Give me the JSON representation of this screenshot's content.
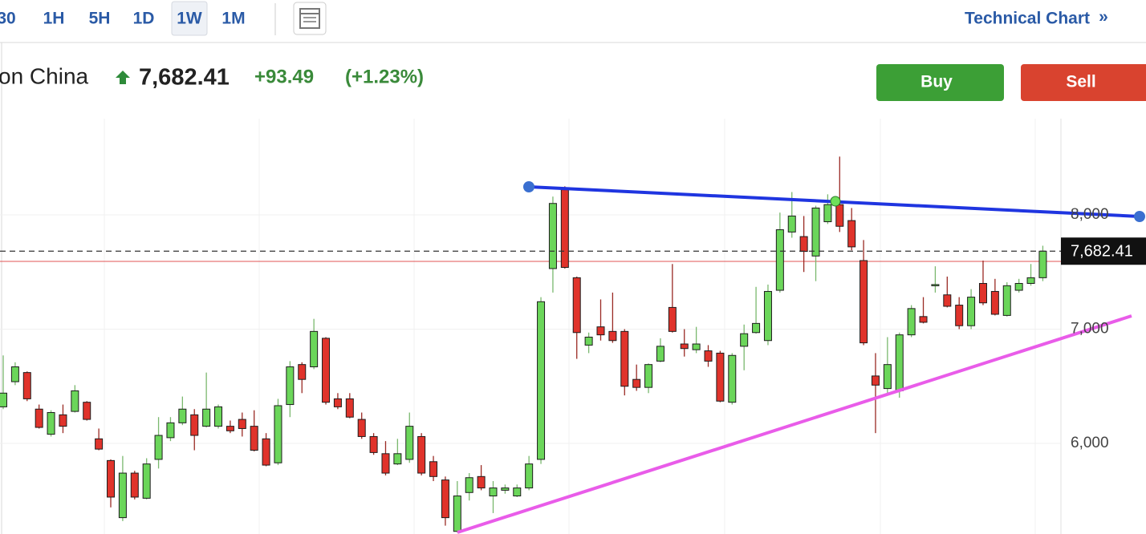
{
  "toolbar": {
    "timeframes": [
      "30",
      "1H",
      "5H",
      "1D",
      "1W",
      "1M"
    ],
    "active": 4,
    "link": "Technical Chart",
    "link_arrow": "»"
  },
  "header": {
    "name": "on China",
    "price": "7,682.41",
    "change": "+93.49",
    "change_pct": "(+1.23%)"
  },
  "buttons": {
    "buy": "Buy",
    "sell": "Sell"
  },
  "chart_data": {
    "type": "candlestick",
    "categories": [
      null,
      null,
      null,
      null,
      null,
      null,
      null,
      null,
      null,
      null,
      null,
      null,
      null,
      null,
      null,
      null,
      null,
      null,
      null,
      null,
      null,
      null,
      null,
      null,
      null,
      null,
      null,
      null,
      null,
      null,
      null,
      null,
      null,
      null,
      null,
      null,
      null,
      null,
      null,
      null,
      null,
      null,
      null,
      null,
      null,
      null,
      null,
      null,
      null,
      null,
      null,
      null,
      null,
      null,
      null,
      null,
      null,
      null,
      null,
      null,
      null,
      null,
      null,
      null,
      null,
      null,
      null,
      null,
      null,
      null,
      null,
      null,
      null,
      null,
      null,
      null,
      null,
      null,
      null,
      null,
      null,
      null,
      null,
      null,
      null,
      null,
      null,
      null
    ],
    "open": [
      6320,
      6540,
      6620,
      6300,
      6080,
      6250,
      6280,
      6360,
      6040,
      5850,
      5350,
      5740,
      5520,
      5860,
      6050,
      6180,
      6250,
      6150,
      6150,
      6150,
      6210,
      6150,
      6040,
      5830,
      6340,
      6690,
      6670,
      6920,
      6390,
      6390,
      6210,
      6060,
      5910,
      5820,
      5860,
      6060,
      5840,
      5680,
      5230,
      5570,
      5710,
      5540,
      5590,
      5540,
      5610,
      5860,
      7530,
      8220,
      7450,
      6860,
      7020,
      6980,
      6980,
      6560,
      6490,
      6720,
      7190,
      6870,
      6820,
      6810,
      6790,
      6360,
      6850,
      6970,
      6900,
      7340,
      7850,
      7810,
      7640,
      7940,
      8090,
      7950,
      7600,
      6590,
      6480,
      6460,
      6950,
      7110,
      7380,
      7300,
      7210,
      7030,
      7400,
      7330,
      7120,
      7340,
      7400,
      7450
    ],
    "high": [
      6770,
      6710,
      6630,
      6340,
      6290,
      6340,
      6510,
      6370,
      6130,
      5860,
      5890,
      5760,
      5870,
      6230,
      6230,
      6410,
      6300,
      6620,
      6340,
      6200,
      6270,
      6290,
      6090,
      6390,
      6720,
      6710,
      7090,
      6930,
      6440,
      6440,
      6270,
      6090,
      6020,
      6040,
      6270,
      6090,
      5890,
      5710,
      5670,
      5740,
      5810,
      5670,
      5640,
      5640,
      5890,
      7280,
      8160,
      8250,
      7460,
      6970,
      7260,
      7320,
      7000,
      6690,
      6700,
      6920,
      7570,
      7000,
      7020,
      6860,
      6810,
      6790,
      7040,
      7370,
      7390,
      8020,
      8200,
      7990,
      8080,
      8180,
      8510,
      8060,
      7780,
      6790,
      6930,
      6970,
      7210,
      7280,
      7550,
      7460,
      7280,
      7350,
      7600,
      7440,
      7410,
      7440,
      7570,
      7730
    ],
    "low": [
      6300,
      6510,
      6370,
      6130,
      6060,
      6090,
      6270,
      6200,
      5940,
      5440,
      5320,
      5510,
      5510,
      5780,
      6020,
      6160,
      5940,
      6140,
      6130,
      6090,
      6060,
      5930,
      5800,
      5810,
      6230,
      6440,
      6650,
      6340,
      6300,
      6220,
      6040,
      5900,
      5720,
      5810,
      5830,
      5720,
      5670,
      5280,
      5220,
      5500,
      5590,
      5390,
      5560,
      5530,
      5590,
      5820,
      7320,
      7530,
      6740,
      6790,
      6900,
      6880,
      6420,
      6460,
      6440,
      6710,
      6970,
      6760,
      6790,
      6670,
      6360,
      6340,
      6640,
      6960,
      6860,
      7320,
      7800,
      7500,
      7420,
      7920,
      7850,
      7690,
      6860,
      6090,
      6440,
      6400,
      6930,
      7050,
      7320,
      7190,
      7000,
      7000,
      7210,
      7120,
      7110,
      7320,
      7380,
      7420
    ],
    "close": [
      6440,
      6670,
      6390,
      6140,
      6270,
      6150,
      6460,
      6210,
      5950,
      5530,
      5740,
      5530,
      5820,
      6070,
      6180,
      6300,
      6070,
      6300,
      6320,
      6110,
      6130,
      5940,
      5810,
      6330,
      6670,
      6560,
      6980,
      6360,
      6320,
      6230,
      6060,
      5920,
      5740,
      5910,
      6150,
      5740,
      5710,
      5350,
      5540,
      5700,
      5610,
      5610,
      5610,
      5610,
      5820,
      7240,
      8100,
      7540,
      6970,
      6930,
      6950,
      6900,
      6500,
      6490,
      6690,
      6850,
      6980,
      6830,
      6870,
      6720,
      6370,
      6770,
      6960,
      7050,
      7330,
      7870,
      7990,
      7680,
      8060,
      8090,
      7900,
      7720,
      6880,
      6510,
      6690,
      6950,
      7180,
      7060,
      7390,
      7200,
      7030,
      7280,
      7230,
      7130,
      7380,
      7400,
      7450,
      7682.41
    ],
    "up_color": "#6bd65a",
    "down_color": "#e0332b",
    "ylim": [
      5207,
      8842
    ],
    "yticks": [
      {
        "value": 6000,
        "label": "6,000"
      },
      {
        "value": 7000,
        "label": "7,000"
      },
      {
        "value": 8000,
        "label": "8,000"
      }
    ],
    "grid": true,
    "last_price": {
      "value": 7682.41,
      "label": "7,682.41"
    }
  }
}
